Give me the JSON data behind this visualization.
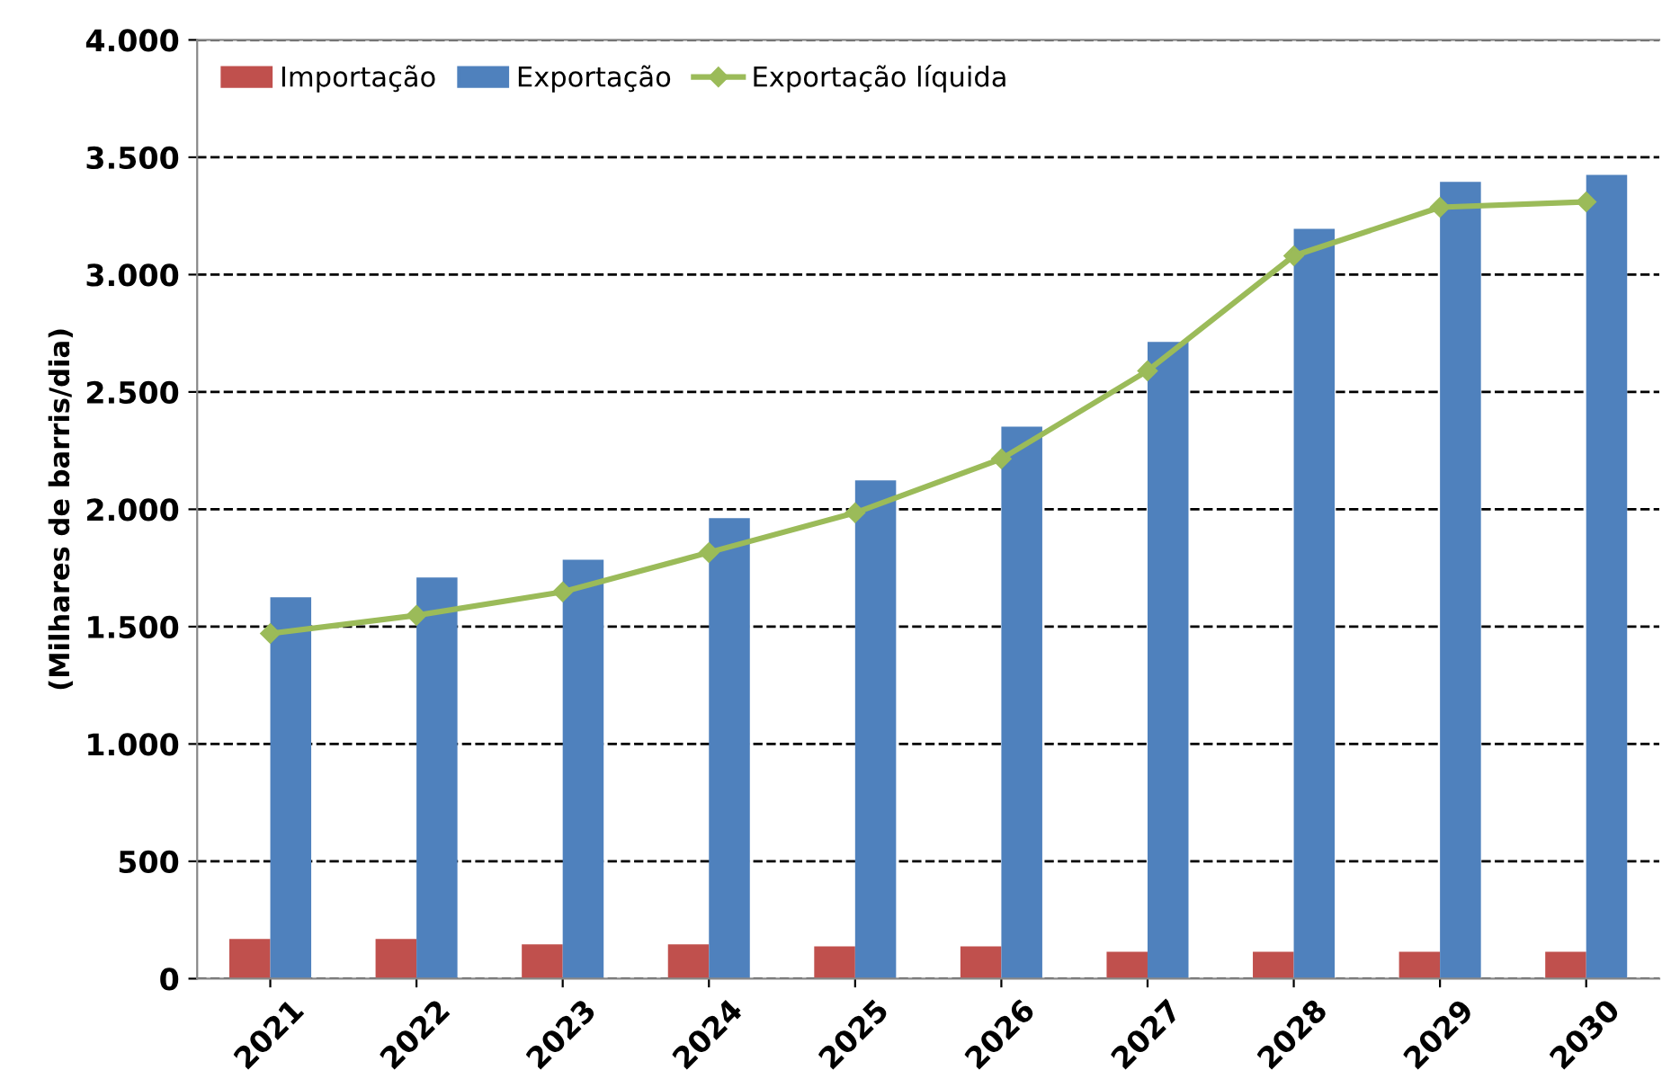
{
  "chart_data": {
    "type": "bar",
    "ylabel": "(Milhares de barris/dia)",
    "categories": [
      "2021",
      "2022",
      "2023",
      "2024",
      "2025",
      "2026",
      "2027",
      "2028",
      "2029",
      "2030"
    ],
    "series": [
      {
        "name": "Importação",
        "color": "#c0504d",
        "values": [
          169,
          169,
          146,
          146,
          138,
          138,
          115,
          115,
          115,
          115
        ]
      },
      {
        "name": "Exportação",
        "color": "#4f81bd",
        "values": [
          1625,
          1709,
          1785,
          1962,
          2123,
          2352,
          2713,
          3195,
          3395,
          3425
        ]
      },
      {
        "name": "Exportação líquida",
        "type": "line",
        "color": "#9bbb59",
        "marker": "diamond",
        "values": [
          1471,
          1548,
          1648,
          1816,
          1985,
          2215,
          2590,
          3080,
          3287,
          3310
        ]
      }
    ],
    "ylim": [
      0,
      4000
    ],
    "yticks": [
      0,
      {
        "value": 500,
        "label": "500"
      },
      {
        "value": 1000,
        "label": "1.000"
      },
      {
        "value": 1500,
        "label": "1.500"
      },
      {
        "value": 2000,
        "label": "2.000"
      },
      {
        "value": 2500,
        "label": "2.500"
      },
      {
        "value": 3000,
        "label": "3.000"
      },
      {
        "value": 3500,
        "label": "3.500"
      },
      {
        "value": 4000,
        "label": "4.000"
      }
    ],
    "grid": "y",
    "legend": "top left"
  }
}
